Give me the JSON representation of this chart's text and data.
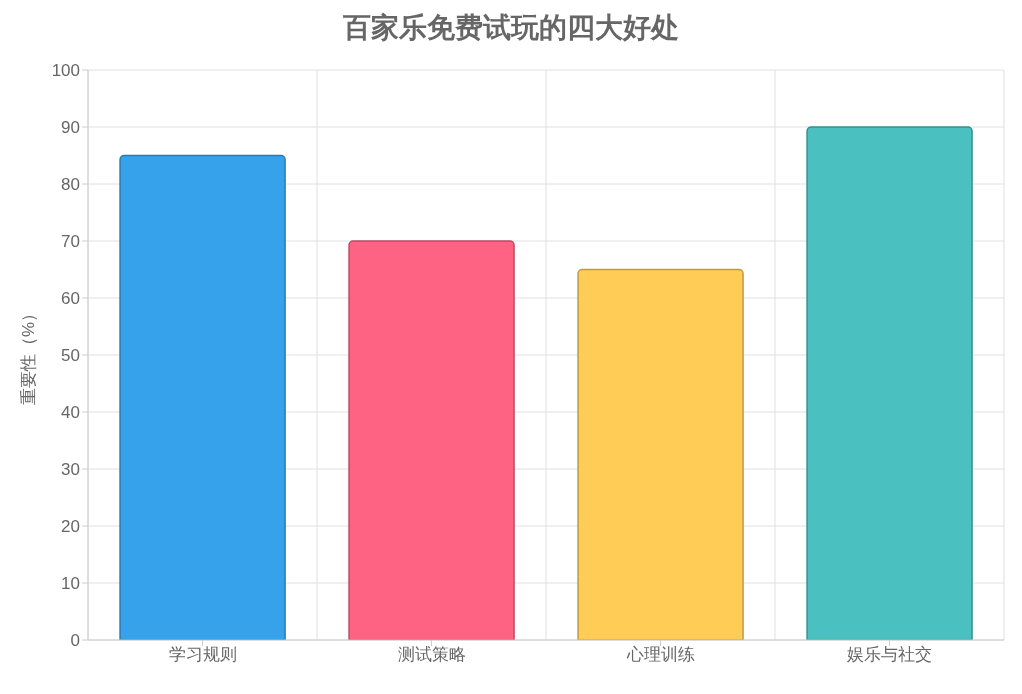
{
  "chart_data": {
    "type": "bar",
    "title": "百家乐免费试玩的四大好处",
    "ylabel": "重要性（%）",
    "categories": [
      "学习规则",
      "测试策略",
      "心理训练",
      "娱乐与社交"
    ],
    "values": [
      85,
      70,
      65,
      90
    ],
    "colors": [
      "#36a2eb",
      "#ff6384",
      "#ffcd56",
      "#4bc0c0"
    ],
    "ylim": [
      0,
      100
    ],
    "yticks": [
      0,
      10,
      20,
      30,
      40,
      50,
      60,
      70,
      80,
      90,
      100
    ],
    "grid": true
  }
}
